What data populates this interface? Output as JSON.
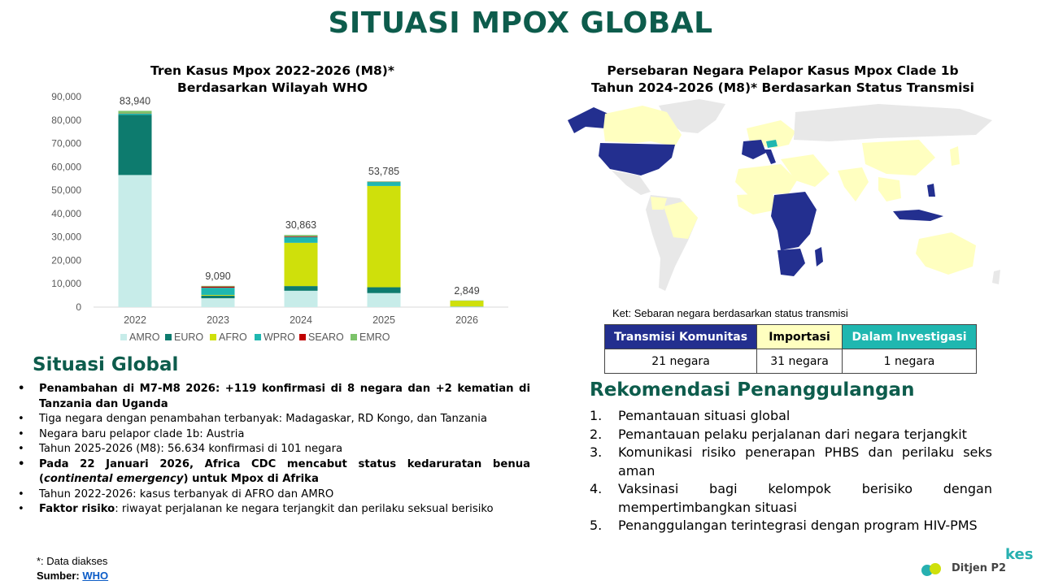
{
  "title": "SITUASI MPOX GLOBAL",
  "chart": {
    "title_line1": "Tren Kasus Mpox 2022-2026 (M8)*",
    "title_line2": "Berdasarkan Wilayah WHO"
  },
  "chart_data": {
    "type": "bar",
    "stacked": true,
    "categories": [
      "2022",
      "2023",
      "2024",
      "2025",
      "2026"
    ],
    "totals": [
      "83,940",
      "9,090",
      "30,863",
      "53,785",
      "2,849"
    ],
    "yticks": [
      "0",
      "10,000",
      "20,000",
      "30,000",
      "40,000",
      "50,000",
      "60,000",
      "70,000",
      "80,000",
      "90,000"
    ],
    "ylim": [
      0,
      90000
    ],
    "legend_position": "bottom",
    "series": [
      {
        "name": "AMRO",
        "color": "#c7ece9",
        "values": [
          56500,
          3800,
          7000,
          6000,
          200
        ]
      },
      {
        "name": "EURO",
        "color": "#0d7b6e",
        "values": [
          25700,
          1100,
          2000,
          2500,
          100
        ]
      },
      {
        "name": "AFRO",
        "color": "#cfe00b",
        "values": [
          0,
          300,
          18500,
          43300,
          2450
        ]
      },
      {
        "name": "WPRO",
        "color": "#1fb7b0",
        "values": [
          500,
          3100,
          2500,
          1700,
          70
        ]
      },
      {
        "name": "SEARO",
        "color": "#c00000",
        "values": [
          100,
          500,
          300,
          100,
          10
        ]
      },
      {
        "name": "EMRO",
        "color": "#7cc36a",
        "values": [
          1140,
          290,
          563,
          185,
          19
        ]
      }
    ]
  },
  "map": {
    "title_line1": "Persebaran Negara Pelapor Kasus Mpox Clade 1b",
    "title_line2": "Tahun 2024-2026 (M8)* Berdasarkan Status Transmisi",
    "note": "Ket: Sebaran negara berdasarkan status transmisi",
    "colors": {
      "community": "#232f8f",
      "imported": "#ffffc0",
      "investigation": "#1fb7b0",
      "none": "#e8e8e8"
    }
  },
  "legend_table": {
    "headers": [
      "Transmisi Komunitas",
      "Importasi",
      "Dalam Investigasi"
    ],
    "values": [
      "21 negara",
      "31 negara",
      "1 negara"
    ]
  },
  "global": {
    "heading": "Situasi Global",
    "items": [
      "Penambahan di M7-M8 2026: +119 konfirmasi di 8 negara dan +2 kematian di Tanzania dan Uganda",
      "Tiga negara dengan penambahan terbanyak: Madagaskar, RD Kongo, dan Tanzania",
      "Negara baru pelapor clade 1b: Austria",
      "Tahun 2025-2026 (M8): 56.634 konfirmasi di 101 negara",
      "Pada 22 Januari 2026, Africa CDC mencabut status kedaruratan benua (",
      "continental emergency",
      ") untuk Mpox di Afrika",
      "Tahun 2022-2026: kasus terbanyak di AFRO dan AMRO",
      "Faktor risiko",
      ": riwayat perjalanan ke negara terjangkit dan perilaku seksual berisiko"
    ]
  },
  "recommendations": {
    "heading": "Rekomendasi Penanggulangan",
    "items": [
      {
        "num": "1.",
        "text": "Pemantauan situasi global"
      },
      {
        "num": "2.",
        "text": "Pemantauan pelaku perjalanan dari negara terjangkit"
      },
      {
        "num": "3.",
        "text": "Komunikasi risiko penerapan PHBS dan perilaku seks aman"
      },
      {
        "num": "4.",
        "text": "Vaksinasi bagi kelompok berisiko dengan mempertimbangkan situasi"
      },
      {
        "num": "5.",
        "text": "Penanggulangan terintegrasi dengan program HIV-PMS"
      }
    ]
  },
  "footnote": {
    "line1": "*: Data diakses",
    "source_label": "Sumber:",
    "source_link": "WHO"
  },
  "footer": {
    "brand": "Ditjen P2",
    "mark": "kes"
  }
}
